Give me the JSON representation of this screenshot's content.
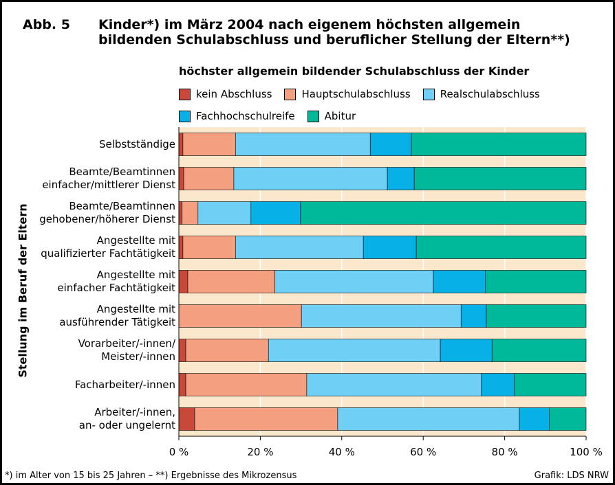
{
  "chart_data": {
    "type": "stacked_bar_horizontal",
    "title_label": "Abb. 5",
    "title": "Kinder*) im März 2004 nach eigenem höchsten allgemein\nbildenden Schulabschluss und beruflicher Stellung der Eltern**)",
    "legend_title": "höchster allgemein bildender Schulabschluss der Kinder",
    "y_label": "Stellung im Beruf der Eltern",
    "categories": [
      "Selbstständige",
      "Beamte/Beamtinnen\neinfacher/mittlerer Dienst",
      "Beamte/Beamtinnen\ngehobener/höherer Dienst",
      "Angestellte mit\nqualifizierter Fachtätigkeit",
      "Angestellte mit\neinfacher Fachtätigkeit",
      "Angestellte mit\nausführender Tätigkeit",
      "Vorarbeiter/-innen/\nMeister/-innen",
      "Facharbeiter/-innen",
      "Arbeiter/-innen,\nan- oder ungelernt"
    ],
    "series": [
      {
        "name": "kein Abschluss",
        "color": "#c8493a",
        "values": [
          1.0,
          1.2,
          0.8,
          1.0,
          2.2,
          0,
          1.7,
          1.7,
          3.9
        ]
      },
      {
        "name": "Hauptschulabschluss",
        "color": "#f4a080",
        "values": [
          12.9,
          12.3,
          3.9,
          12.9,
          21.4,
          30.1,
          20.3,
          29.7,
          35.1
        ]
      },
      {
        "name": "Realschulabschluss",
        "color": "#6fcff5",
        "values": [
          33.1,
          37.7,
          13.0,
          31.4,
          38.9,
          39.2,
          42.2,
          42.9,
          44.6
        ]
      },
      {
        "name": "Fachhochschulreife",
        "color": "#08b0e8",
        "values": [
          10.1,
          6.6,
          12.2,
          13.0,
          12.8,
          6.2,
          12.7,
          8.1,
          7.4
        ]
      },
      {
        "name": "Abitur",
        "color": "#00b89a",
        "values": [
          42.9,
          42.2,
          70.1,
          41.7,
          24.7,
          24.5,
          23.1,
          17.6,
          9.0
        ]
      }
    ],
    "xlim": [
      0,
      100
    ],
    "xticks": [
      {
        "value": 0,
        "label": "0 %"
      },
      {
        "value": 20,
        "label": "20 %"
      },
      {
        "value": 40,
        "label": "40 %"
      },
      {
        "value": 60,
        "label": "60 %"
      },
      {
        "value": 80,
        "label": "80 %"
      },
      {
        "value": 100,
        "label": "100 %"
      }
    ],
    "grid": true,
    "footnote": "*) im Alter von 15 bis 25 Jahren – **) Ergebnisse des Mikrozensus",
    "source": "Grafik: LDS NRW"
  }
}
